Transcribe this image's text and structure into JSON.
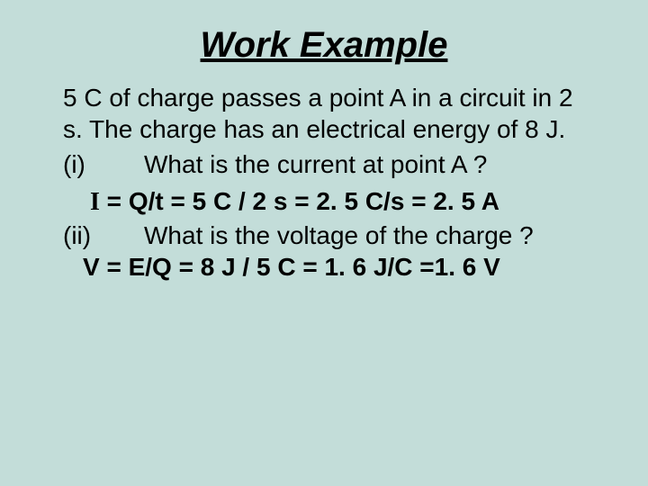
{
  "colors": {
    "background": "#c3ddd9",
    "text": "#000000"
  },
  "typography": {
    "title_fontsize": 40,
    "body_fontsize": 28,
    "title_italic": true,
    "title_bold": true,
    "title_underline": true,
    "font_family": "Arial"
  },
  "title": "Work Example",
  "problem": "5 C of charge passes a point A in a circuit in  2 s. The charge has an electrical energy of  8 J.",
  "q1": {
    "label": "(i)",
    "text": "What is the current at point A ?"
  },
  "answer1": {
    "symbol": "I",
    "rest": " = Q/t  = 5 C / 2 s  = 2. 5 C/s = 2. 5 A"
  },
  "q2": {
    "label": "(ii)",
    "text": "What is the voltage of the charge ?"
  },
  "answer2": "V = E/Q  = 8 J / 5 C  = 1. 6 J/C =1. 6 V"
}
